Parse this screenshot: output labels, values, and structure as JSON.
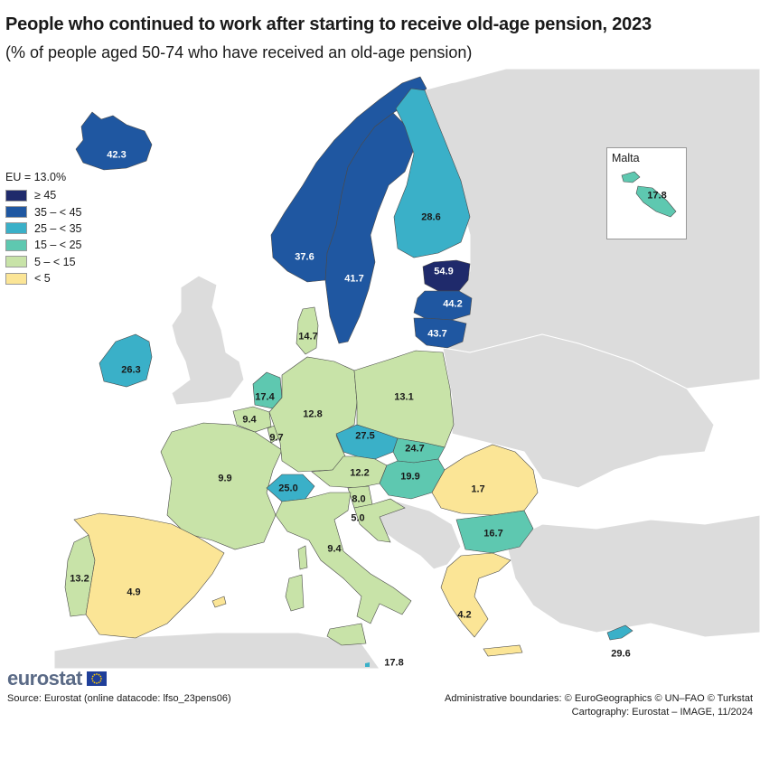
{
  "title": "People who continued to work after starting to receive old-age pension, 2023",
  "subtitle": "(% of people aged 50-74 who have received an old-age pension)",
  "legend": {
    "title": "EU = 13.0%",
    "classes": [
      {
        "label": "≥ 45",
        "color": "#1f2a6b"
      },
      {
        "label": "35 – < 45",
        "color": "#1f57a1"
      },
      {
        "label": "25 – < 35",
        "color": "#3ab0c8"
      },
      {
        "label": "15 – < 25",
        "color": "#5ec8b0"
      },
      {
        "label": "5 – < 15",
        "color": "#c8e3a8"
      },
      {
        "label": "< 5",
        "color": "#fbe596"
      }
    ]
  },
  "colors": {
    "non_eu": "#dcdcdc",
    "sea": "#ffffff",
    "border": "#4a4a4a"
  },
  "countries": [
    {
      "code": "IS",
      "value": "42.3"
    },
    {
      "code": "NO",
      "value": "37.6"
    },
    {
      "code": "SE",
      "value": "41.7"
    },
    {
      "code": "FI",
      "value": "28.6"
    },
    {
      "code": "EE",
      "value": "54.9"
    },
    {
      "code": "LV",
      "value": "44.2"
    },
    {
      "code": "LT",
      "value": "43.7"
    },
    {
      "code": "DK",
      "value": "14.7"
    },
    {
      "code": "IE",
      "value": "26.3"
    },
    {
      "code": "NL",
      "value": "17.4"
    },
    {
      "code": "BE",
      "value": "9.4"
    },
    {
      "code": "LU",
      "value": "9.7"
    },
    {
      "code": "DE",
      "value": "12.8"
    },
    {
      "code": "PL",
      "value": "13.1"
    },
    {
      "code": "CZ",
      "value": "27.5"
    },
    {
      "code": "SK",
      "value": "24.7"
    },
    {
      "code": "HU",
      "value": "19.9"
    },
    {
      "code": "AT",
      "value": "12.2"
    },
    {
      "code": "CH",
      "value": "25.0"
    },
    {
      "code": "SI",
      "value": "8.0"
    },
    {
      "code": "HR",
      "value": "5.0"
    },
    {
      "code": "FR",
      "value": "9.9"
    },
    {
      "code": "IT",
      "value": "9.4"
    },
    {
      "code": "RO",
      "value": "1.7"
    },
    {
      "code": "BG",
      "value": "16.7"
    },
    {
      "code": "EL",
      "value": "4.2"
    },
    {
      "code": "PT",
      "value": "13.2"
    },
    {
      "code": "ES",
      "value": "4.9"
    },
    {
      "code": "CY",
      "value": "29.6"
    },
    {
      "code": "MT",
      "value": "17.8"
    }
  ],
  "malta_inset": {
    "title": "Malta",
    "value": "17.8"
  },
  "logo": "eurostat",
  "source": "Source: Eurostat (online datacode: lfso_23pens06)",
  "credits": {
    "line1": "Administrative boundaries: © EuroGeographics © UN–FAO © Turkstat",
    "line2": "Cartography: Eurostat – IMAGE, 11/2024"
  }
}
